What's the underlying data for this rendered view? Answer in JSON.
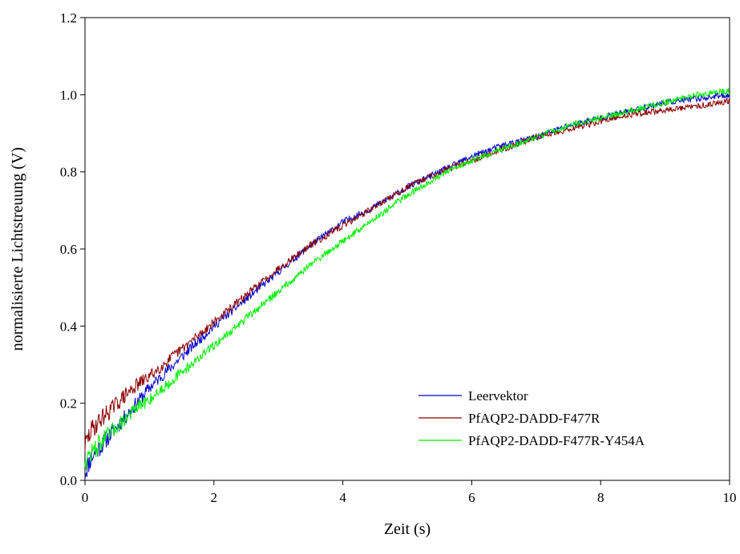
{
  "chart_data": {
    "type": "line",
    "title": "",
    "xlabel": "Zeit (s)",
    "ylabel": "normalisierte Lichtstreuung (V)",
    "xlim": [
      0,
      10
    ],
    "ylim": [
      0,
      1.2
    ],
    "xticks": [
      "0",
      "2",
      "4",
      "6",
      "8",
      "10"
    ],
    "yticks": [
      "0.0",
      "0.2",
      "0.4",
      "0.6",
      "0.8",
      "1.0",
      "1.2"
    ],
    "grid": false,
    "legend_position": "bottom-right",
    "series": [
      {
        "name": "Leervektor",
        "color": "#0000cc",
        "x": [
          0,
          0.1,
          0.25,
          0.5,
          0.75,
          1,
          1.5,
          2,
          2.5,
          3,
          3.5,
          4,
          4.5,
          5,
          5.5,
          6,
          6.5,
          7,
          7.5,
          8,
          8.5,
          9,
          9.5,
          10
        ],
        "y": [
          0.02,
          0.06,
          0.09,
          0.14,
          0.19,
          0.24,
          0.32,
          0.4,
          0.47,
          0.54,
          0.61,
          0.67,
          0.71,
          0.76,
          0.8,
          0.84,
          0.87,
          0.89,
          0.92,
          0.94,
          0.96,
          0.98,
          0.99,
          1.0
        ]
      },
      {
        "name": "PfAQP2-DADD-F477R",
        "color": "#8b0000",
        "x": [
          0,
          0.1,
          0.25,
          0.5,
          0.75,
          1,
          1.5,
          2,
          2.5,
          3,
          3.5,
          4,
          4.5,
          5,
          5.5,
          6,
          6.5,
          7,
          7.5,
          8,
          8.5,
          9,
          9.5,
          10
        ],
        "y": [
          0.09,
          0.13,
          0.16,
          0.2,
          0.24,
          0.27,
          0.34,
          0.41,
          0.48,
          0.55,
          0.61,
          0.66,
          0.71,
          0.76,
          0.8,
          0.83,
          0.86,
          0.89,
          0.91,
          0.93,
          0.95,
          0.96,
          0.97,
          0.985
        ]
      },
      {
        "name": "PfAQP2-DADD-F477R-Y454A",
        "color": "#00ee00",
        "x": [
          0,
          0.1,
          0.25,
          0.5,
          0.75,
          1,
          1.5,
          2,
          2.5,
          3,
          3.5,
          4,
          4.5,
          5,
          5.5,
          6,
          6.5,
          7,
          7.5,
          8,
          8.5,
          9,
          9.5,
          10
        ],
        "y": [
          0.05,
          0.07,
          0.1,
          0.14,
          0.18,
          0.21,
          0.28,
          0.35,
          0.42,
          0.49,
          0.56,
          0.62,
          0.68,
          0.74,
          0.79,
          0.83,
          0.86,
          0.89,
          0.92,
          0.94,
          0.96,
          0.98,
          1.0,
          1.01
        ]
      }
    ]
  }
}
